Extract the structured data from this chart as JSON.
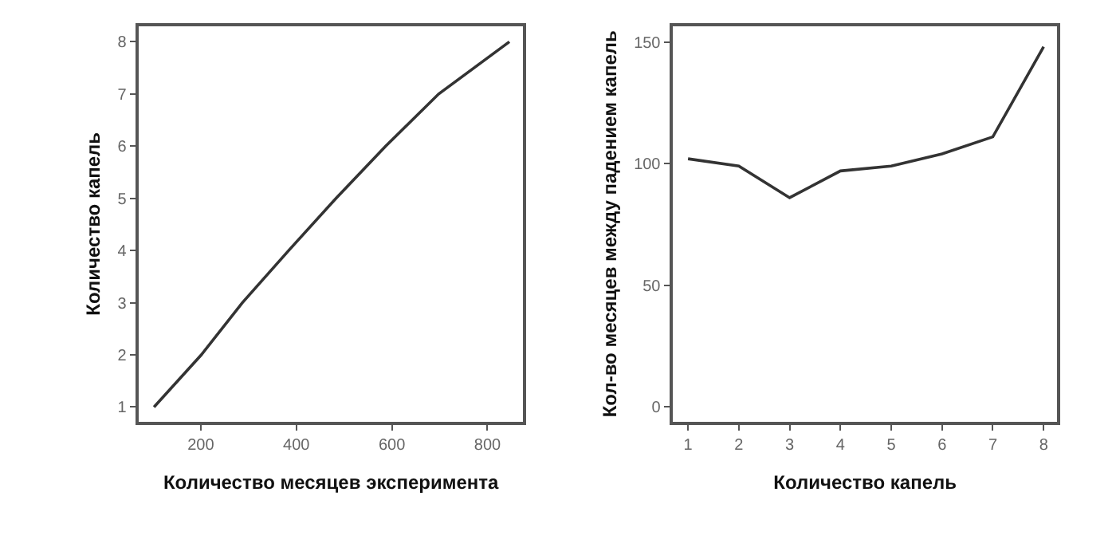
{
  "chart_data": [
    {
      "type": "line",
      "xlabel": "Количество месяцев эксперимента",
      "ylabel": "Количество капель",
      "x": [
        102,
        201,
        287,
        384,
        483,
        587,
        698,
        846
      ],
      "series": [
        {
          "color": "#333333",
          "values": [
            1,
            2,
            3,
            4,
            5,
            6,
            7,
            8
          ]
        }
      ],
      "xlim": [
        70,
        875
      ],
      "xticks": [
        200,
        400,
        600,
        800
      ],
      "ylim": [
        0.72,
        8.3
      ],
      "yticks": [
        1,
        2,
        3,
        4,
        5,
        6,
        7,
        8
      ]
    },
    {
      "type": "line",
      "xlabel": "Количество капель",
      "ylabel": "Кол-во месяцев между падением капель",
      "x": [
        1,
        2,
        3,
        4,
        5,
        6,
        7,
        8
      ],
      "series": [
        {
          "color": "#333333",
          "values": [
            102,
            99,
            86,
            97,
            99,
            104,
            111,
            148
          ]
        }
      ],
      "xlim": [
        0.7,
        8.27
      ],
      "xticks": [
        1,
        2,
        3,
        4,
        5,
        6,
        7,
        8
      ],
      "ylim": [
        -6,
        156.5
      ],
      "yticks": [
        0,
        50,
        100,
        150
      ]
    }
  ]
}
